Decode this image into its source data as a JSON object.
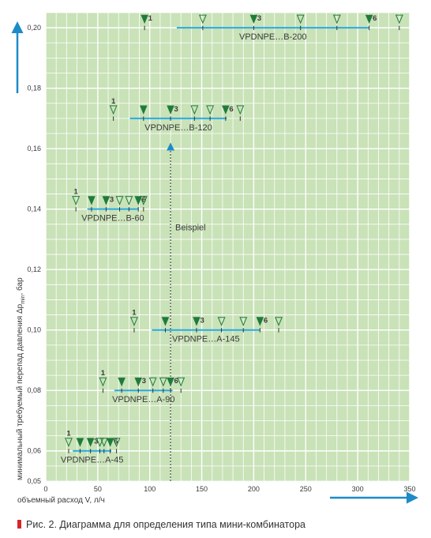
{
  "colors": {
    "plot_bg": "#c9e2b8",
    "grid": "#ffffff",
    "series_line": "#29abe2",
    "marker_filled": "#1f7b3a",
    "marker_open_stroke": "#1f7b3a",
    "arrow": "#1d8bc7",
    "text": "#3a3a3a",
    "caption_bullet": "#d7262b"
  },
  "caption": "Рис. 2. Диаграмма для определения типа мини-комбинатора",
  "chart_data": {
    "type": "scatter",
    "xlabel": "объемный расход V, л/ч",
    "ylabel_parts": [
      "минимальный требуемый перепад давления Δp",
      "min",
      ", бар"
    ],
    "xlim": [
      0,
      350
    ],
    "ylim": [
      0.05,
      0.205
    ],
    "x_ticks": [
      0,
      50,
      100,
      150,
      200,
      250,
      300,
      350
    ],
    "y_ticks": [
      0.05,
      0.06,
      0.08,
      0.1,
      0.12,
      0.14,
      0.16,
      0.18,
      0.2
    ],
    "y_tick_labels": [
      "0,05",
      "0,06",
      "0,08",
      "0,10",
      "0,12",
      "0,14",
      "0,16",
      "0,18",
      "0,20"
    ],
    "grid": true,
    "series": [
      {
        "name": "VPDNPE…B-200",
        "y": 0.2,
        "range": [
          126,
          311
        ],
        "markers": [
          {
            "x": 95,
            "filled": true,
            "label": "1"
          },
          {
            "x": 151,
            "filled": false,
            "label": ""
          },
          {
            "x": 200,
            "filled": true,
            "label": "3"
          },
          {
            "x": 245,
            "filled": false,
            "label": ""
          },
          {
            "x": 280,
            "filled": false,
            "label": ""
          },
          {
            "x": 311,
            "filled": true,
            "label": "6"
          },
          {
            "x": 340,
            "filled": false,
            "label": ""
          }
        ]
      },
      {
        "name": "VPDNPE…B-120",
        "y": 0.17,
        "range": [
          81,
          174
        ],
        "markers": [
          {
            "x": 65,
            "filled": false,
            "label": "1"
          },
          {
            "x": 94,
            "filled": true,
            "label": ""
          },
          {
            "x": 120,
            "filled": true,
            "label": "3"
          },
          {
            "x": 143,
            "filled": false,
            "label": ""
          },
          {
            "x": 158,
            "filled": false,
            "label": ""
          },
          {
            "x": 173,
            "filled": true,
            "label": "6"
          },
          {
            "x": 187,
            "filled": false,
            "label": ""
          }
        ]
      },
      {
        "name": "VPDNPE…B-60",
        "y": 0.14,
        "range": [
          40,
          89
        ],
        "markers": [
          {
            "x": 29,
            "filled": false,
            "label": "1"
          },
          {
            "x": 44,
            "filled": true,
            "label": ""
          },
          {
            "x": 58,
            "filled": true,
            "label": "3"
          },
          {
            "x": 71,
            "filled": false,
            "label": ""
          },
          {
            "x": 80,
            "filled": false,
            "label": ""
          },
          {
            "x": 89,
            "filled": true,
            "label": "6"
          },
          {
            "x": 94,
            "filled": false,
            "label": ""
          }
        ]
      },
      {
        "name": "VPDNPE…A-145",
        "y": 0.1,
        "range": [
          102,
          206
        ],
        "markers": [
          {
            "x": 85,
            "filled": false,
            "label": "1"
          },
          {
            "x": 115,
            "filled": true,
            "label": ""
          },
          {
            "x": 145,
            "filled": true,
            "label": "3"
          },
          {
            "x": 169,
            "filled": false,
            "label": ""
          },
          {
            "x": 190,
            "filled": false,
            "label": ""
          },
          {
            "x": 206,
            "filled": true,
            "label": "6"
          },
          {
            "x": 224,
            "filled": false,
            "label": ""
          }
        ]
      },
      {
        "name": "VPDNPE…A-90",
        "y": 0.08,
        "range": [
          66,
          122
        ],
        "markers": [
          {
            "x": 55,
            "filled": false,
            "label": "1"
          },
          {
            "x": 73,
            "filled": true,
            "label": ""
          },
          {
            "x": 89,
            "filled": true,
            "label": "3"
          },
          {
            "x": 103,
            "filled": false,
            "label": ""
          },
          {
            "x": 113,
            "filled": false,
            "label": ""
          },
          {
            "x": 120,
            "filled": true,
            "label": "6"
          },
          {
            "x": 130,
            "filled": false,
            "label": ""
          }
        ]
      },
      {
        "name": "VPDNPE…A-45",
        "y": 0.06,
        "range": [
          26,
          63
        ],
        "markers": [
          {
            "x": 22,
            "filled": false,
            "label": "1"
          },
          {
            "x": 33,
            "filled": true,
            "label": ""
          },
          {
            "x": 43,
            "filled": true,
            "label": "3"
          },
          {
            "x": 52,
            "filled": false,
            "label": ""
          },
          {
            "x": 56,
            "filled": false,
            "label": ""
          },
          {
            "x": 62,
            "filled": true,
            "label": "6"
          },
          {
            "x": 68,
            "filled": false,
            "label": ""
          }
        ]
      }
    ],
    "annotations": [
      {
        "text": "Beispiel",
        "x": 120,
        "y_from": 0.05,
        "y_to": 0.162,
        "y_text": 0.134
      }
    ]
  }
}
